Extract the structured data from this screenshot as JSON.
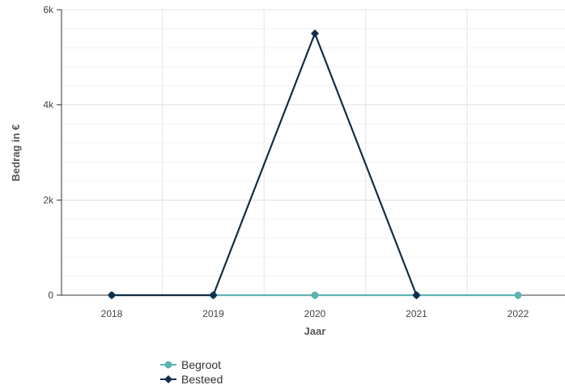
{
  "chart_data": {
    "type": "line",
    "categories": [
      "2018",
      "2019",
      "2020",
      "2021",
      "2022"
    ],
    "xlabel": "Jaar",
    "ylabel": "Bedrag in €",
    "ylim": [
      0,
      6000
    ],
    "yticks": [
      {
        "value": 0,
        "label": "0"
      },
      {
        "value": 2000,
        "label": "2k"
      },
      {
        "value": 4000,
        "label": "4k"
      },
      {
        "value": 6000,
        "label": "6k"
      }
    ],
    "grid": true,
    "legend_position": "bottom-left",
    "series": [
      {
        "name": "Begroot",
        "color": "#5fb3b3",
        "marker": "circle",
        "values": [
          0,
          0,
          0,
          0,
          0
        ]
      },
      {
        "name": "Besteed",
        "color": "#142d4a",
        "marker": "diamond",
        "values": [
          0,
          0,
          5500,
          0,
          null
        ]
      }
    ]
  }
}
